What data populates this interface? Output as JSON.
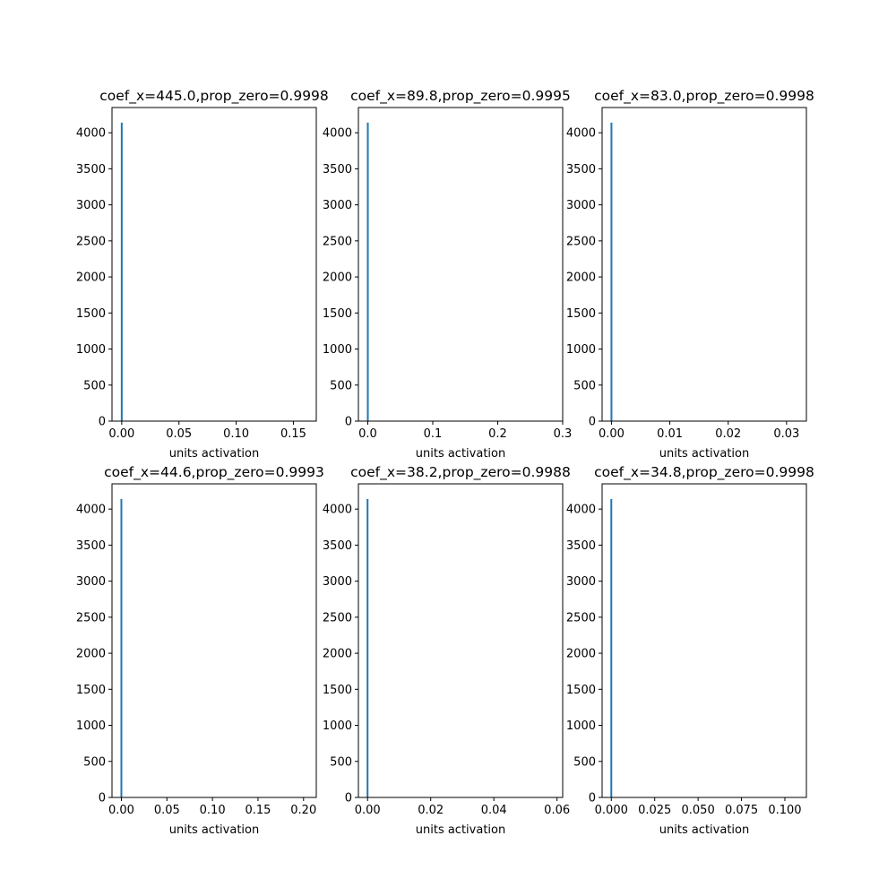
{
  "colors": {
    "bar": "#1f77b4",
    "axes": "#000000",
    "background": "#ffffff"
  },
  "chart_data": [
    {
      "type": "bar",
      "title": "coef_x=445.0,prop_zero=0.9998",
      "xlabel": "units activation",
      "ylabel": "",
      "xlim": [
        -0.0085,
        0.17
      ],
      "ylim": [
        0,
        4350
      ],
      "xticks": [
        0.0,
        0.05,
        0.1,
        0.15
      ],
      "xtick_labels": [
        "0.00",
        "0.05",
        "0.10",
        "0.15"
      ],
      "yticks": [
        0,
        500,
        1000,
        1500,
        2000,
        2500,
        3000,
        3500,
        4000
      ],
      "bins": [
        {
          "x": 0.0,
          "count": 4140
        }
      ],
      "grid": false,
      "legend": "none"
    },
    {
      "type": "bar",
      "title": "coef_x=89.8,prop_zero=0.9995",
      "xlabel": "units activation",
      "ylabel": "",
      "xlim": [
        -0.0145,
        0.3
      ],
      "ylim": [
        0,
        4350
      ],
      "xticks": [
        0.0,
        0.1,
        0.2,
        0.3
      ],
      "xtick_labels": [
        "0.0",
        "0.1",
        "0.2",
        "0.3"
      ],
      "yticks": [
        0,
        500,
        1000,
        1500,
        2000,
        2500,
        3000,
        3500,
        4000
      ],
      "bins": [
        {
          "x": 0.0,
          "count": 4140
        }
      ],
      "grid": false,
      "legend": "none"
    },
    {
      "type": "bar",
      "title": "coef_x=83.0,prop_zero=0.9998",
      "xlabel": "units activation",
      "ylabel": "",
      "xlim": [
        -0.0016,
        0.0334
      ],
      "ylim": [
        0,
        4350
      ],
      "xticks": [
        0.0,
        0.01,
        0.02,
        0.03
      ],
      "xtick_labels": [
        "0.00",
        "0.01",
        "0.02",
        "0.03"
      ],
      "yticks": [
        0,
        500,
        1000,
        1500,
        2000,
        2500,
        3000,
        3500,
        4000
      ],
      "bins": [
        {
          "x": 0.0,
          "count": 4140
        }
      ],
      "grid": false,
      "legend": "none"
    },
    {
      "type": "bar",
      "title": "coef_x=44.6,prop_zero=0.9993",
      "xlabel": "units activation",
      "ylabel": "",
      "xlim": [
        -0.0103,
        0.214
      ],
      "ylim": [
        0,
        4350
      ],
      "xticks": [
        0.0,
        0.05,
        0.1,
        0.15,
        0.2
      ],
      "xtick_labels": [
        "0.00",
        "0.05",
        "0.10",
        "0.15",
        "0.20"
      ],
      "yticks": [
        0,
        500,
        1000,
        1500,
        2000,
        2500,
        3000,
        3500,
        4000
      ],
      "bins": [
        {
          "x": 0.0,
          "count": 4140
        }
      ],
      "grid": false,
      "legend": "none"
    },
    {
      "type": "bar",
      "title": "coef_x=38.2,prop_zero=0.9988",
      "xlabel": "units activation",
      "ylabel": "",
      "xlim": [
        -0.0029,
        0.0618
      ],
      "ylim": [
        0,
        4350
      ],
      "xticks": [
        0.0,
        0.02,
        0.04,
        0.06
      ],
      "xtick_labels": [
        "0.00",
        "0.02",
        "0.04",
        "0.06"
      ],
      "yticks": [
        0,
        500,
        1000,
        1500,
        2000,
        2500,
        3000,
        3500,
        4000
      ],
      "bins": [
        {
          "x": 0.0,
          "count": 4140
        }
      ],
      "grid": false,
      "legend": "none"
    },
    {
      "type": "bar",
      "title": "coef_x=34.8,prop_zero=0.9998",
      "xlabel": "units activation",
      "ylabel": "",
      "xlim": [
        -0.0053,
        0.1124
      ],
      "ylim": [
        0,
        4350
      ],
      "xticks": [
        0.0,
        0.025,
        0.05,
        0.075,
        0.1
      ],
      "xtick_labels": [
        "0.000",
        "0.025",
        "0.050",
        "0.075",
        "0.100"
      ],
      "yticks": [
        0,
        500,
        1000,
        1500,
        2000,
        2500,
        3000,
        3500,
        4000
      ],
      "bins": [
        {
          "x": 0.0,
          "count": 4140
        }
      ],
      "grid": false,
      "legend": "none"
    }
  ]
}
